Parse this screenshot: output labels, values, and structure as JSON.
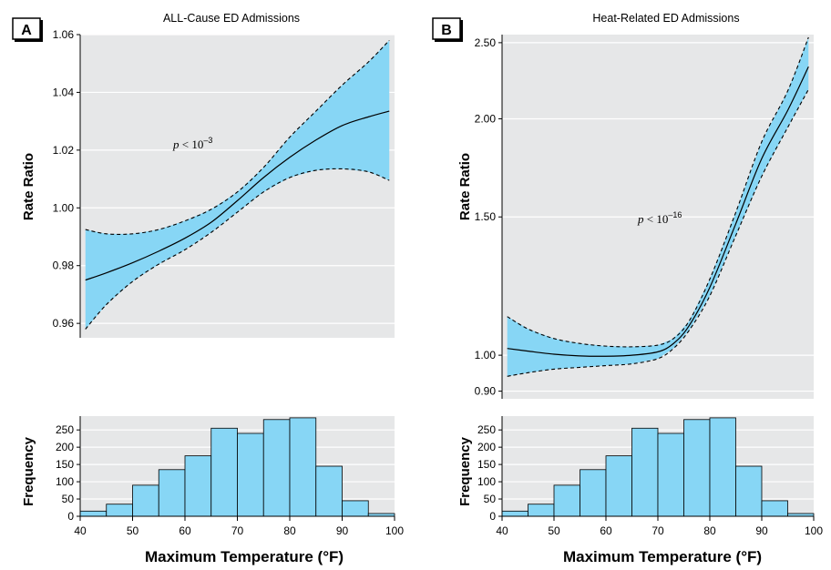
{
  "colors": {
    "band": "#87d6f5",
    "panel_bg": "#e6e7e8",
    "grid": "#ffffff",
    "line": "#000000"
  },
  "chart_data": [
    {
      "panel": "A",
      "type": "line",
      "title": "ALL-Cause ED Admissions",
      "ylabel": "Rate Ratio",
      "xlabel": "",
      "annotation": {
        "base": "p < 10",
        "exp": "–3"
      },
      "xlim": [
        40,
        100
      ],
      "ylim": [
        0.955,
        1.06
      ],
      "yticks": [
        0.96,
        0.98,
        1.0,
        1.02,
        1.04,
        1.06
      ],
      "yticklabels": [
        "0.96",
        "0.98",
        "1.00",
        "1.02",
        "1.04",
        "1.06"
      ],
      "grid": true,
      "x": [
        41,
        45,
        50,
        55,
        60,
        65,
        70,
        75,
        80,
        85,
        90,
        95,
        99
      ],
      "estimate": [
        0.975,
        0.9775,
        0.981,
        0.985,
        0.9895,
        0.995,
        1.0025,
        1.0105,
        1.0175,
        1.0235,
        1.0285,
        1.0315,
        1.0335
      ],
      "lower": [
        0.958,
        0.9665,
        0.9745,
        0.9805,
        0.9855,
        0.9915,
        0.9985,
        1.0055,
        1.0105,
        1.013,
        1.0135,
        1.0125,
        1.0095
      ],
      "upper": [
        0.9925,
        0.991,
        0.991,
        0.9925,
        0.9955,
        0.9995,
        1.0055,
        1.014,
        1.0245,
        1.0335,
        1.0425,
        1.0505,
        1.058
      ]
    },
    {
      "panel": "A",
      "type": "bar",
      "xlabel": "Maximum Temperature (°F)",
      "ylabel": "Frequency",
      "xlim": [
        40,
        100
      ],
      "ylim": [
        0,
        290
      ],
      "yticks": [
        0,
        50,
        100,
        150,
        200,
        250
      ],
      "xticks": [
        40,
        50,
        60,
        70,
        80,
        90,
        100
      ],
      "bin_edges": [
        40,
        45,
        50,
        55,
        60,
        65,
        70,
        75,
        80,
        85,
        90,
        95,
        100
      ],
      "values": [
        15,
        35,
        90,
        135,
        175,
        255,
        240,
        280,
        285,
        145,
        45,
        8
      ]
    },
    {
      "panel": "B",
      "type": "line",
      "title": "Heat-Related ED Admissions",
      "ylabel": "Rate Ratio",
      "xlabel": "",
      "annotation": {
        "base": "p < 10",
        "exp": "–16"
      },
      "xlim": [
        40,
        100
      ],
      "ylim": [
        0.88,
        2.56
      ],
      "y_scale": "log",
      "yticks": [
        0.9,
        1.0,
        1.5,
        2.0,
        2.5
      ],
      "yticklabels": [
        "0.90",
        "1.00",
        "1.50",
        "2.00",
        "2.50"
      ],
      "grid": true,
      "x": [
        41,
        45,
        50,
        55,
        60,
        65,
        70,
        73,
        76,
        80,
        85,
        90,
        95,
        99
      ],
      "estimate": [
        1.02,
        1.012,
        1.003,
        0.998,
        0.997,
        1.0,
        1.01,
        1.035,
        1.09,
        1.22,
        1.47,
        1.78,
        2.05,
        2.33
      ],
      "lower": [
        0.94,
        0.95,
        0.96,
        0.965,
        0.97,
        0.975,
        0.99,
        1.02,
        1.075,
        1.19,
        1.42,
        1.69,
        1.95,
        2.18
      ],
      "upper": [
        1.12,
        1.08,
        1.05,
        1.035,
        1.027,
        1.025,
        1.03,
        1.05,
        1.105,
        1.25,
        1.52,
        1.87,
        2.17,
        2.54
      ]
    },
    {
      "panel": "B",
      "type": "bar",
      "xlabel": "Maximum Temperature (°F)",
      "ylabel": "Frequency",
      "xlim": [
        40,
        100
      ],
      "ylim": [
        0,
        290
      ],
      "yticks": [
        0,
        50,
        100,
        150,
        200,
        250
      ],
      "xticks": [
        40,
        50,
        60,
        70,
        80,
        90,
        100
      ],
      "bin_edges": [
        40,
        45,
        50,
        55,
        60,
        65,
        70,
        75,
        80,
        85,
        90,
        95,
        100
      ],
      "values": [
        15,
        35,
        90,
        135,
        175,
        255,
        240,
        280,
        285,
        145,
        45,
        8
      ]
    }
  ]
}
